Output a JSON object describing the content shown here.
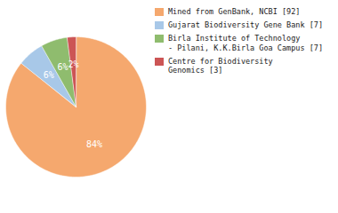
{
  "chart_data": {
    "type": "pie",
    "categories": [
      "Mined from GenBank, NCBI [92]",
      "Gujarat Biodiversity Gene Bank [7]",
      "Birla Institute of Technology\n- Pilani, K.K.Birla Goa Campus [7]",
      "Centre for Biodiversity\nGenomics [3]"
    ],
    "values": [
      84,
      6,
      6,
      2
    ],
    "value_labels": [
      "84%",
      "6%",
      "6%",
      "2%"
    ],
    "colors": [
      "#F5A86E",
      "#A8C8E8",
      "#8FBC6E",
      "#CC5555"
    ],
    "data_labels": true,
    "legend": "right"
  }
}
